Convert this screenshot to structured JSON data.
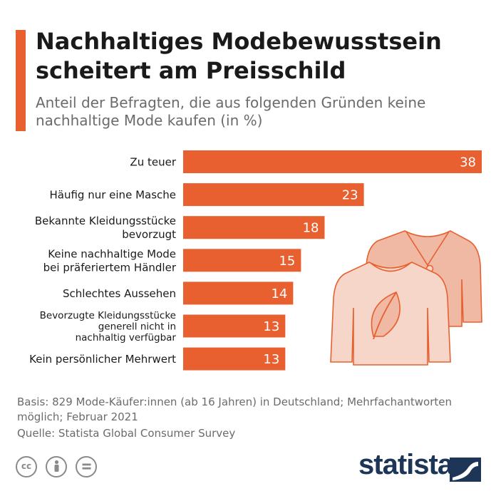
{
  "title": "Nachhaltiges Modebewusstsein scheitert am Preisschild",
  "subtitle": "Anteil der Befragten, die aus folgenden Gründen keine nachhaltige Mode kaufen (in %)",
  "chart_data": {
    "type": "bar",
    "orientation": "horizontal",
    "title": "Nachhaltiges Modebewusstsein scheitert am Preisschild",
    "subtitle": "Anteil der Befragten, die aus folgenden Gründen keine nachhaltige Mode kaufen (in %)",
    "categories": [
      "Zu teuer",
      "Häufig nur eine Masche",
      "Bekannte Kleidungsstücke bevorzugt",
      "Keine nachhaltige Mode bei präferiertem Händler",
      "Schlechtes Aussehen",
      "Bevorzugte Kleidungsstücke generell nicht in nachhaltig verfügbar",
      "Kein persönlicher Mehrwert"
    ],
    "category_lines": [
      [
        "Zu teuer"
      ],
      [
        "Häufig nur eine Masche"
      ],
      [
        "Bekannte Kleidungsstücke",
        "bevorzugt"
      ],
      [
        "Keine nachhaltige Mode",
        "bei präferiertem Händler"
      ],
      [
        "Schlechtes Aussehen"
      ],
      [
        "Bevorzugte Kleidungsstücke",
        "generell nicht in",
        "nachhaltig verfügbar"
      ],
      [
        "Kein persönlicher Mehrwert"
      ]
    ],
    "values": [
      38,
      23,
      18,
      15,
      14,
      13,
      13
    ],
    "xlim": [
      0,
      38
    ],
    "grid": false,
    "legend": "none",
    "bar_color": "#e8602f"
  },
  "notes": "Basis: 829 Mode-Käufer:innen (ab 16 Jahren) in Deutschland; Mehrfachantworten möglich; Februar 2021",
  "source": "Quelle: Statista Global Consumer Survey",
  "brand": "statista",
  "illustration_icon": "cardigan-and-sweater-with-leaf-icon",
  "license_icons": [
    "creative-commons-icon",
    "attribution-icon",
    "no-derivatives-icon"
  ],
  "colors": {
    "accent": "#e8602f",
    "illustration_back": "#f0b9a4",
    "illustration_front": "#f7d6ca",
    "illustration_stroke": "#e8602f",
    "brand": "#1d3557"
  }
}
